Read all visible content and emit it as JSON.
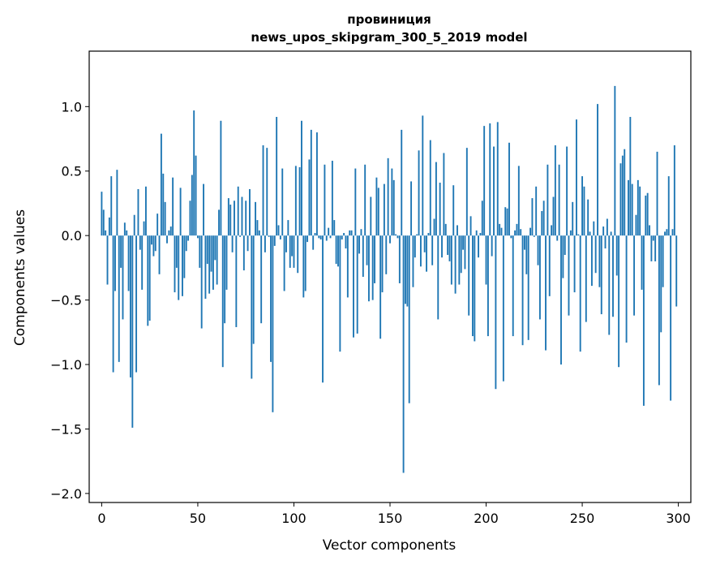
{
  "chart_data": {
    "type": "bar",
    "title_lines": [
      "провиниция",
      "news_upos_skipgram_300_5_2019 model"
    ],
    "xlabel": "Vector components",
    "ylabel": "Components values",
    "xlim": [
      -6.5,
      306.5
    ],
    "ylim": [
      -2.07,
      1.43
    ],
    "xticks": [
      0,
      50,
      100,
      150,
      200,
      250,
      300
    ],
    "xtick_labels": [
      "0",
      "50",
      "100",
      "150",
      "200",
      "250",
      "300"
    ],
    "yticks": [
      -2.0,
      -1.5,
      -1.0,
      -0.5,
      0.0,
      0.5,
      1.0
    ],
    "ytick_labels": [
      "−2.0",
      "−1.5",
      "−1.0",
      "−0.5",
      "0.0",
      "0.5",
      "1.0"
    ],
    "bar_color": "#1f77b4",
    "bar_width": 0.8,
    "grid": false,
    "values": [
      0.34,
      0.2,
      0.04,
      -0.38,
      0.14,
      0.46,
      -1.06,
      -0.43,
      0.51,
      -0.98,
      -0.25,
      -0.65,
      0.1,
      0.04,
      -0.43,
      -1.1,
      -1.49,
      0.16,
      -1.06,
      0.36,
      -0.11,
      -0.42,
      0.11,
      0.38,
      -0.7,
      -0.66,
      -0.07,
      -0.16,
      -0.12,
      0.17,
      -0.3,
      0.79,
      0.48,
      0.26,
      -0.06,
      0.04,
      0.07,
      0.45,
      -0.44,
      -0.25,
      -0.5,
      0.37,
      -0.47,
      -0.33,
      -0.12,
      -0.04,
      0.27,
      0.47,
      0.97,
      0.62,
      -0.02,
      -0.25,
      -0.72,
      0.4,
      -0.49,
      -0.22,
      -0.45,
      -0.28,
      -0.42,
      -0.19,
      -0.38,
      0.2,
      0.89,
      -1.02,
      -0.68,
      -0.42,
      0.29,
      0.24,
      -0.13,
      0.27,
      -0.71,
      0.38,
      -0.01,
      0.3,
      -0.27,
      0.27,
      -0.12,
      0.36,
      -1.11,
      -0.84,
      0.26,
      0.12,
      0.04,
      -0.68,
      0.7,
      -0.13,
      0.68,
      -0.01,
      -0.98,
      -1.37,
      -0.08,
      0.92,
      0.08,
      -0.03,
      0.52,
      -0.43,
      -0.13,
      0.12,
      -0.25,
      -0.16,
      -0.25,
      0.54,
      -0.29,
      0.53,
      0.89,
      -0.48,
      -0.43,
      -0.05,
      0.59,
      0.82,
      -0.11,
      0.02,
      0.8,
      -0.02,
      -0.03,
      -1.14,
      0.55,
      -0.04,
      0.06,
      -0.02,
      0.58,
      0.12,
      -0.22,
      -0.24,
      -0.9,
      -0.03,
      0.02,
      -0.1,
      -0.48,
      0.04,
      0.04,
      -0.79,
      0.52,
      -0.76,
      -0.14,
      0.05,
      -0.32,
      0.55,
      -0.23,
      -0.51,
      0.3,
      -0.5,
      -0.37,
      0.45,
      0.37,
      -0.8,
      -0.44,
      0.4,
      -0.3,
      0.6,
      -0.06,
      0.52,
      0.43,
      0.01,
      -0.02,
      -0.37,
      0.82,
      -1.84,
      -0.53,
      -0.55,
      -1.3,
      0.42,
      -0.4,
      -0.17,
      0.01,
      0.66,
      -0.24,
      0.93,
      -0.13,
      -0.28,
      0.02,
      0.74,
      -0.23,
      0.13,
      0.57,
      -0.65,
      0.41,
      -0.17,
      0.64,
      0.09,
      -0.15,
      -0.2,
      -0.38,
      0.39,
      -0.45,
      0.08,
      -0.38,
      -0.29,
      -0.11,
      -0.26,
      0.68,
      -0.62,
      0.15,
      -0.78,
      -0.82,
      0.04,
      -0.17,
      0.02,
      0.27,
      0.85,
      -0.38,
      -0.78,
      0.87,
      -0.16,
      0.69,
      -1.19,
      0.88,
      0.09,
      0.06,
      -1.13,
      0.22,
      0.21,
      0.72,
      -0.02,
      -0.78,
      0.04,
      0.09,
      0.54,
      0.05,
      -0.85,
      -0.11,
      -0.3,
      -0.81,
      0.06,
      0.29,
      -0.01,
      0.38,
      -0.23,
      -0.65,
      0.19,
      0.27,
      -0.89,
      0.55,
      -0.47,
      0.08,
      0.3,
      0.7,
      -0.04,
      0.55,
      -1.0,
      -0.33,
      -0.15,
      0.69,
      -0.62,
      0.04,
      0.26,
      -0.44,
      0.9,
      0.01,
      -0.9,
      0.46,
      0.38,
      -0.67,
      0.28,
      0.03,
      -0.39,
      0.11,
      -0.29,
      1.02,
      -0.4,
      -0.61,
      0.07,
      -0.1,
      0.13,
      -0.77,
      0.03,
      -0.63,
      1.16,
      -0.31,
      -1.02,
      0.56,
      0.62,
      0.67,
      -0.83,
      0.43,
      0.92,
      0.4,
      -0.62,
      0.16,
      0.43,
      0.38,
      -0.42,
      -1.32,
      0.31,
      0.33,
      0.08,
      -0.2,
      -0.04,
      -0.2,
      0.65,
      -1.16,
      -0.75,
      -0.4,
      0.03,
      0.05,
      0.46,
      -1.28,
      0.05,
      0.7,
      -0.55
    ]
  }
}
